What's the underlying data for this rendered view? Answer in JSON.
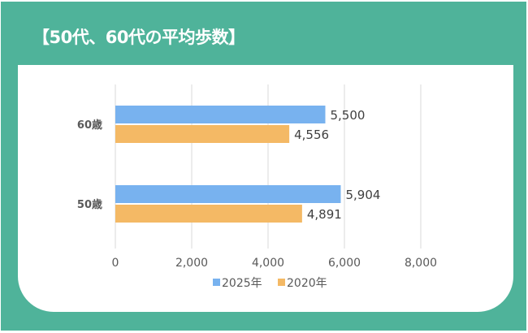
{
  "title": "【50代、60代の平均歩数】",
  "colors": {
    "background": "#4fb39a",
    "series_2025": "#78b2ef",
    "series_2020": "#f4b965",
    "grid": "#d9d9d9",
    "text": "#595959"
  },
  "chart_data": {
    "type": "bar",
    "orientation": "horizontal",
    "title": "【50代、60代の平均歩数】",
    "categories": [
      "60歳",
      "50歳"
    ],
    "series": [
      {
        "name": "2025年",
        "values": [
          5500,
          5904
        ],
        "labels": [
          "5,500",
          "5,904"
        ]
      },
      {
        "name": "2020年",
        "values": [
          4556,
          4891
        ],
        "labels": [
          "4,556",
          "4,891"
        ]
      }
    ],
    "xlim": [
      0,
      8000
    ],
    "xticks": [
      0,
      2000,
      4000,
      6000,
      8000
    ],
    "xtick_labels": [
      "0",
      "2,000",
      "4,000",
      "6,000",
      "8,000"
    ],
    "grid": true,
    "legend": "bottom"
  }
}
